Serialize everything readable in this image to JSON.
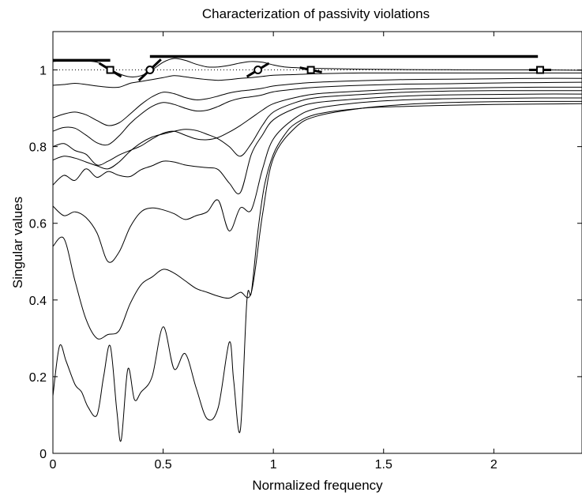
{
  "chart_data": {
    "type": "line",
    "title": "Characterization of passivity violations",
    "xlabel": "Normalized frequency",
    "ylabel": "Singular values",
    "xlim": [
      0,
      2.4
    ],
    "ylim": [
      0,
      1.1
    ],
    "xticks": [
      0,
      0.5,
      1,
      1.5,
      2
    ],
    "xtick_labels": [
      "0",
      "0.5",
      "1",
      "1.5",
      "2"
    ],
    "yticks": [
      0,
      0.2,
      0.4,
      0.6,
      0.8,
      1
    ],
    "ytick_labels": [
      "0",
      "0.2",
      "0.4",
      "0.6",
      "0.8",
      "1"
    ],
    "grid": false,
    "unity_reference": 1,
    "series": [
      {
        "x": [
          0,
          0.05,
          0.1,
          0.15,
          0.2,
          0.25,
          0.3,
          0.35,
          0.4,
          0.45,
          0.5,
          0.55,
          0.6,
          0.65,
          0.7,
          0.75,
          0.8,
          0.85,
          0.9,
          0.95,
          1.0,
          1.05,
          1.1,
          1.2,
          1.4,
          1.6,
          1.8,
          2.0,
          2.2,
          2.4
        ],
        "y": [
          1.022,
          1.024,
          1.025,
          1.024,
          1.02,
          1.006,
          0.99,
          0.982,
          0.985,
          1.0,
          1.02,
          1.03,
          1.025,
          1.015,
          1.008,
          1.008,
          1.012,
          1.018,
          1.022,
          1.02,
          1.013,
          1.008,
          1.006,
          1.004,
          1.002,
          1.001,
          1.0005,
          1.0,
          1.0,
          0.999
        ]
      },
      {
        "x": [
          0,
          0.05,
          0.1,
          0.15,
          0.2,
          0.25,
          0.3,
          0.35,
          0.4,
          0.45,
          0.5,
          0.55,
          0.6,
          0.65,
          0.7,
          0.75,
          0.8,
          0.85,
          0.9,
          0.95,
          1.0,
          1.1,
          1.2,
          1.4,
          1.6,
          1.8,
          2.0,
          2.2,
          2.4
        ],
        "y": [
          0.96,
          0.962,
          0.965,
          0.962,
          0.958,
          0.955,
          0.955,
          0.965,
          0.97,
          0.975,
          0.98,
          0.985,
          0.982,
          0.978,
          0.975,
          0.973,
          0.975,
          0.978,
          0.98,
          0.983,
          0.986,
          0.988,
          0.99,
          0.992,
          0.992,
          0.992,
          0.992,
          0.992,
          0.992
        ]
      },
      {
        "x": [
          0,
          0.05,
          0.1,
          0.15,
          0.2,
          0.25,
          0.3,
          0.35,
          0.4,
          0.45,
          0.5,
          0.55,
          0.6,
          0.65,
          0.7,
          0.75,
          0.8,
          0.85,
          0.9,
          0.95,
          1.0,
          1.1,
          1.2,
          1.4,
          1.6,
          1.8,
          2.0,
          2.2,
          2.4
        ],
        "y": [
          0.875,
          0.885,
          0.89,
          0.883,
          0.868,
          0.855,
          0.862,
          0.885,
          0.91,
          0.93,
          0.942,
          0.938,
          0.928,
          0.922,
          0.925,
          0.932,
          0.94,
          0.945,
          0.948,
          0.952,
          0.958,
          0.964,
          0.968,
          0.972,
          0.975,
          0.976,
          0.977,
          0.978,
          0.978
        ]
      },
      {
        "x": [
          0,
          0.05,
          0.1,
          0.15,
          0.2,
          0.25,
          0.3,
          0.35,
          0.4,
          0.45,
          0.5,
          0.55,
          0.6,
          0.65,
          0.7,
          0.75,
          0.8,
          0.85,
          0.9,
          0.95,
          1.0,
          1.1,
          1.2,
          1.4,
          1.6,
          1.8,
          2.0,
          2.2,
          2.4
        ],
        "y": [
          0.84,
          0.85,
          0.848,
          0.83,
          0.81,
          0.805,
          0.828,
          0.86,
          0.885,
          0.905,
          0.915,
          0.91,
          0.9,
          0.893,
          0.895,
          0.905,
          0.918,
          0.926,
          0.93,
          0.935,
          0.943,
          0.95,
          0.955,
          0.96,
          0.963,
          0.964,
          0.966,
          0.967,
          0.968
        ]
      },
      {
        "x": [
          0,
          0.05,
          0.1,
          0.15,
          0.2,
          0.25,
          0.3,
          0.35,
          0.4,
          0.45,
          0.5,
          0.55,
          0.6,
          0.65,
          0.7,
          0.75,
          0.8,
          0.85,
          0.9,
          0.95,
          1.0,
          1.1,
          1.2,
          1.4,
          1.6,
          1.8,
          2.0,
          2.2,
          2.4
        ],
        "y": [
          0.8,
          0.808,
          0.79,
          0.78,
          0.752,
          0.762,
          0.778,
          0.79,
          0.802,
          0.82,
          0.835,
          0.84,
          0.83,
          0.82,
          0.818,
          0.824,
          0.838,
          0.855,
          0.875,
          0.895,
          0.912,
          0.928,
          0.938,
          0.945,
          0.95,
          0.952,
          0.954,
          0.955,
          0.955
        ]
      },
      {
        "x": [
          0,
          0.05,
          0.1,
          0.15,
          0.2,
          0.25,
          0.3,
          0.35,
          0.4,
          0.45,
          0.5,
          0.55,
          0.6,
          0.65,
          0.7,
          0.75,
          0.8,
          0.85,
          0.9,
          0.95,
          1.0,
          1.1,
          1.2,
          1.4,
          1.6,
          1.8,
          2.0,
          2.2,
          2.4
        ],
        "y": [
          0.765,
          0.775,
          0.77,
          0.76,
          0.75,
          0.742,
          0.76,
          0.788,
          0.81,
          0.825,
          0.833,
          0.84,
          0.845,
          0.842,
          0.832,
          0.82,
          0.8,
          0.775,
          0.808,
          0.855,
          0.89,
          0.915,
          0.928,
          0.936,
          0.942,
          0.945,
          0.946,
          0.946,
          0.946
        ]
      },
      {
        "x": [
          0,
          0.05,
          0.1,
          0.15,
          0.2,
          0.25,
          0.3,
          0.35,
          0.4,
          0.45,
          0.5,
          0.55,
          0.6,
          0.65,
          0.7,
          0.75,
          0.8,
          0.85,
          0.9,
          0.95,
          1.0,
          1.1,
          1.2,
          1.4,
          1.6,
          1.8,
          2.0,
          2.2,
          2.4
        ],
        "y": [
          0.7,
          0.725,
          0.712,
          0.742,
          0.72,
          0.735,
          0.725,
          0.722,
          0.74,
          0.75,
          0.762,
          0.76,
          0.752,
          0.748,
          0.745,
          0.74,
          0.705,
          0.68,
          0.78,
          0.83,
          0.87,
          0.9,
          0.915,
          0.925,
          0.932,
          0.935,
          0.936,
          0.937,
          0.937
        ]
      },
      {
        "x": [
          0,
          0.05,
          0.1,
          0.15,
          0.2,
          0.25,
          0.3,
          0.35,
          0.4,
          0.45,
          0.5,
          0.55,
          0.6,
          0.65,
          0.7,
          0.75,
          0.8,
          0.85,
          0.9,
          0.95,
          1.0,
          1.1,
          1.2,
          1.4,
          1.6,
          1.8,
          2.0,
          2.2,
          2.4
        ],
        "y": [
          0.645,
          0.62,
          0.63,
          0.615,
          0.575,
          0.5,
          0.525,
          0.59,
          0.63,
          0.64,
          0.635,
          0.625,
          0.61,
          0.62,
          0.63,
          0.66,
          0.58,
          0.64,
          0.635,
          0.74,
          0.82,
          0.875,
          0.9,
          0.915,
          0.922,
          0.925,
          0.926,
          0.927,
          0.927
        ]
      },
      {
        "x": [
          0,
          0.05,
          0.1,
          0.15,
          0.2,
          0.25,
          0.3,
          0.35,
          0.4,
          0.45,
          0.5,
          0.55,
          0.6,
          0.65,
          0.7,
          0.75,
          0.8,
          0.85,
          0.9,
          0.95,
          1.0,
          1.1,
          1.2,
          1.4,
          1.6,
          1.8,
          2.0,
          2.2,
          2.4
        ],
        "y": [
          0.54,
          0.56,
          0.45,
          0.35,
          0.3,
          0.31,
          0.32,
          0.39,
          0.44,
          0.46,
          0.48,
          0.47,
          0.45,
          0.43,
          0.42,
          0.41,
          0.405,
          0.42,
          0.42,
          0.62,
          0.77,
          0.85,
          0.88,
          0.9,
          0.91,
          0.915,
          0.917,
          0.918,
          0.918
        ]
      },
      {
        "x": [
          0,
          0.03,
          0.06,
          0.1,
          0.13,
          0.16,
          0.2,
          0.23,
          0.26,
          0.29,
          0.31,
          0.34,
          0.37,
          0.4,
          0.45,
          0.5,
          0.55,
          0.6,
          0.65,
          0.7,
          0.75,
          0.8,
          0.82,
          0.85,
          0.88,
          0.9,
          0.93,
          0.96,
          1.0,
          1.05,
          1.1,
          1.2,
          1.4,
          1.6,
          1.8,
          2.0,
          2.2,
          2.4
        ],
        "y": [
          0.15,
          0.28,
          0.24,
          0.18,
          0.16,
          0.12,
          0.1,
          0.2,
          0.28,
          0.11,
          0.035,
          0.22,
          0.14,
          0.16,
          0.2,
          0.33,
          0.22,
          0.26,
          0.17,
          0.09,
          0.12,
          0.29,
          0.19,
          0.06,
          0.4,
          0.42,
          0.58,
          0.7,
          0.78,
          0.83,
          0.86,
          0.885,
          0.9,
          0.905,
          0.908,
          0.91,
          0.911,
          0.912
        ]
      }
    ],
    "violation_bands": [
      {
        "x_start": 0,
        "x_end": 0.26,
        "level": 1.025
      },
      {
        "x_start": 0.44,
        "x_end": 2.2,
        "level": 1.035
      }
    ],
    "markers": [
      {
        "shape": "square",
        "x": 0.26,
        "y": 1.0,
        "slope": -0.35
      },
      {
        "shape": "circle",
        "x": 0.44,
        "y": 1.0,
        "slope": 0.55
      },
      {
        "shape": "circle",
        "x": 0.93,
        "y": 1.0,
        "slope": 0.35
      },
      {
        "shape": "square",
        "x": 1.17,
        "y": 1.0,
        "slope": -0.12
      },
      {
        "shape": "square",
        "x": 2.21,
        "y": 1.0,
        "slope": 0.0
      }
    ]
  }
}
